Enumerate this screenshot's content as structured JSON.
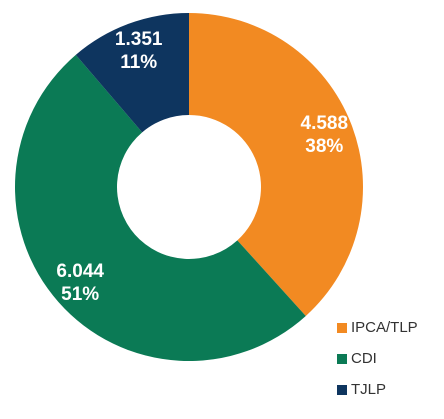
{
  "chart_data": {
    "type": "pie",
    "categories": [
      "IPCA/TLP",
      "CDI",
      "TJLP"
    ],
    "values": [
      4588,
      6044,
      1351
    ],
    "value_labels": [
      "4.588",
      "6.044",
      "1.351"
    ],
    "percentages": [
      38,
      51,
      11
    ],
    "percentage_labels": [
      "38%",
      "51%",
      "11%"
    ],
    "colors": [
      "#f28a22",
      "#0b7a55",
      "#0e355f"
    ],
    "donut": true,
    "legend": "bottom-right"
  }
}
